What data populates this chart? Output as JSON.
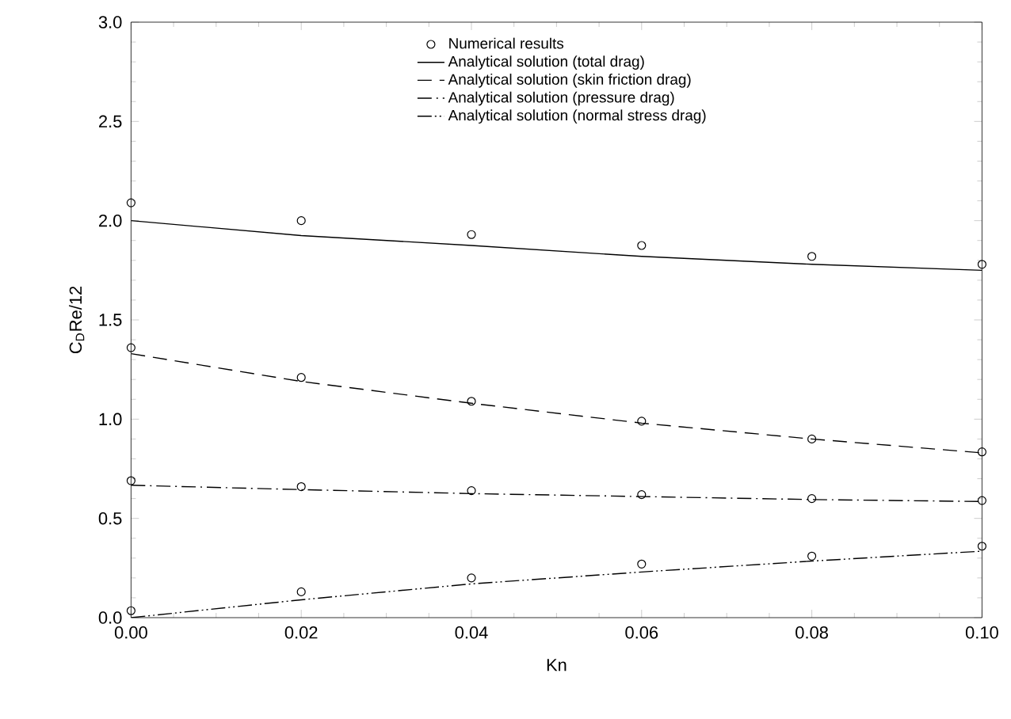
{
  "chart_data": {
    "type": "line",
    "xlabel": "Kn",
    "ylabel": "C$_{D}$Re/12",
    "xlim": [
      0,
      0.1
    ],
    "xticks": [
      {
        "value": 0,
        "label": "0.00"
      },
      0.02,
      0.04,
      0.06,
      0.08,
      {
        "value": 0.1,
        "label": "0.10"
      }
    ],
    "ylim": [
      0,
      3
    ],
    "yticks": [
      {
        "value": 0,
        "label": "0.0"
      },
      0.5,
      {
        "value": 1,
        "label": "1.0"
      },
      1.5,
      {
        "value": 2,
        "label": "2.0"
      },
      2.5,
      {
        "value": 3,
        "label": "3.0"
      }
    ],
    "grid": false,
    "legend": "top",
    "series": [
      {
        "name": "Numerical results",
        "type": "scatter",
        "marker": "circle",
        "color": "#000000",
        "x": [
          0,
          0.02,
          0.04,
          0.06,
          0.08,
          0.1,
          0,
          0.02,
          0.04,
          0.06,
          0.08,
          0.1,
          0,
          0.02,
          0.04,
          0.06,
          0.08,
          0.1,
          0,
          0.02,
          0.04,
          0.06,
          0.08,
          0.1
        ],
        "values": [
          2.09,
          2.0,
          1.93,
          1.875,
          1.82,
          1.78,
          1.36,
          1.21,
          1.09,
          0.99,
          0.9,
          0.835,
          0.69,
          0.66,
          0.64,
          0.62,
          0.6,
          0.59,
          0.035,
          0.13,
          0.2,
          0.27,
          0.31,
          0.36
        ]
      },
      {
        "name": "Analytical solution (total drag)",
        "line_style": "solid",
        "color": "#000000",
        "x": [
          0,
          0.02,
          0.04,
          0.06,
          0.08,
          0.1
        ],
        "values": [
          2.0,
          1.925,
          1.875,
          1.82,
          1.78,
          1.75
        ]
      },
      {
        "name": "Analytical solution (skin friction drag)",
        "line_style": "dashed",
        "color": "#000000",
        "x": [
          0,
          0.02,
          0.04,
          0.06,
          0.08,
          0.1
        ],
        "values": [
          1.33,
          1.19,
          1.08,
          0.98,
          0.9,
          0.83
        ]
      },
      {
        "name": "Analytical solution (pressure drag)",
        "line_style": "dashdot",
        "color": "#000000",
        "x": [
          0,
          0.02,
          0.04,
          0.06,
          0.08,
          0.1
        ],
        "values": [
          0.667,
          0.645,
          0.625,
          0.61,
          0.595,
          0.585
        ]
      },
      {
        "name": "Analytical solution (normal stress drag)",
        "line_style": "dashdotdot",
        "color": "#000000",
        "x": [
          0,
          0.02,
          0.04,
          0.06,
          0.08,
          0.1
        ],
        "values": [
          0,
          0.09,
          0.17,
          0.23,
          0.285,
          0.335
        ]
      }
    ]
  }
}
